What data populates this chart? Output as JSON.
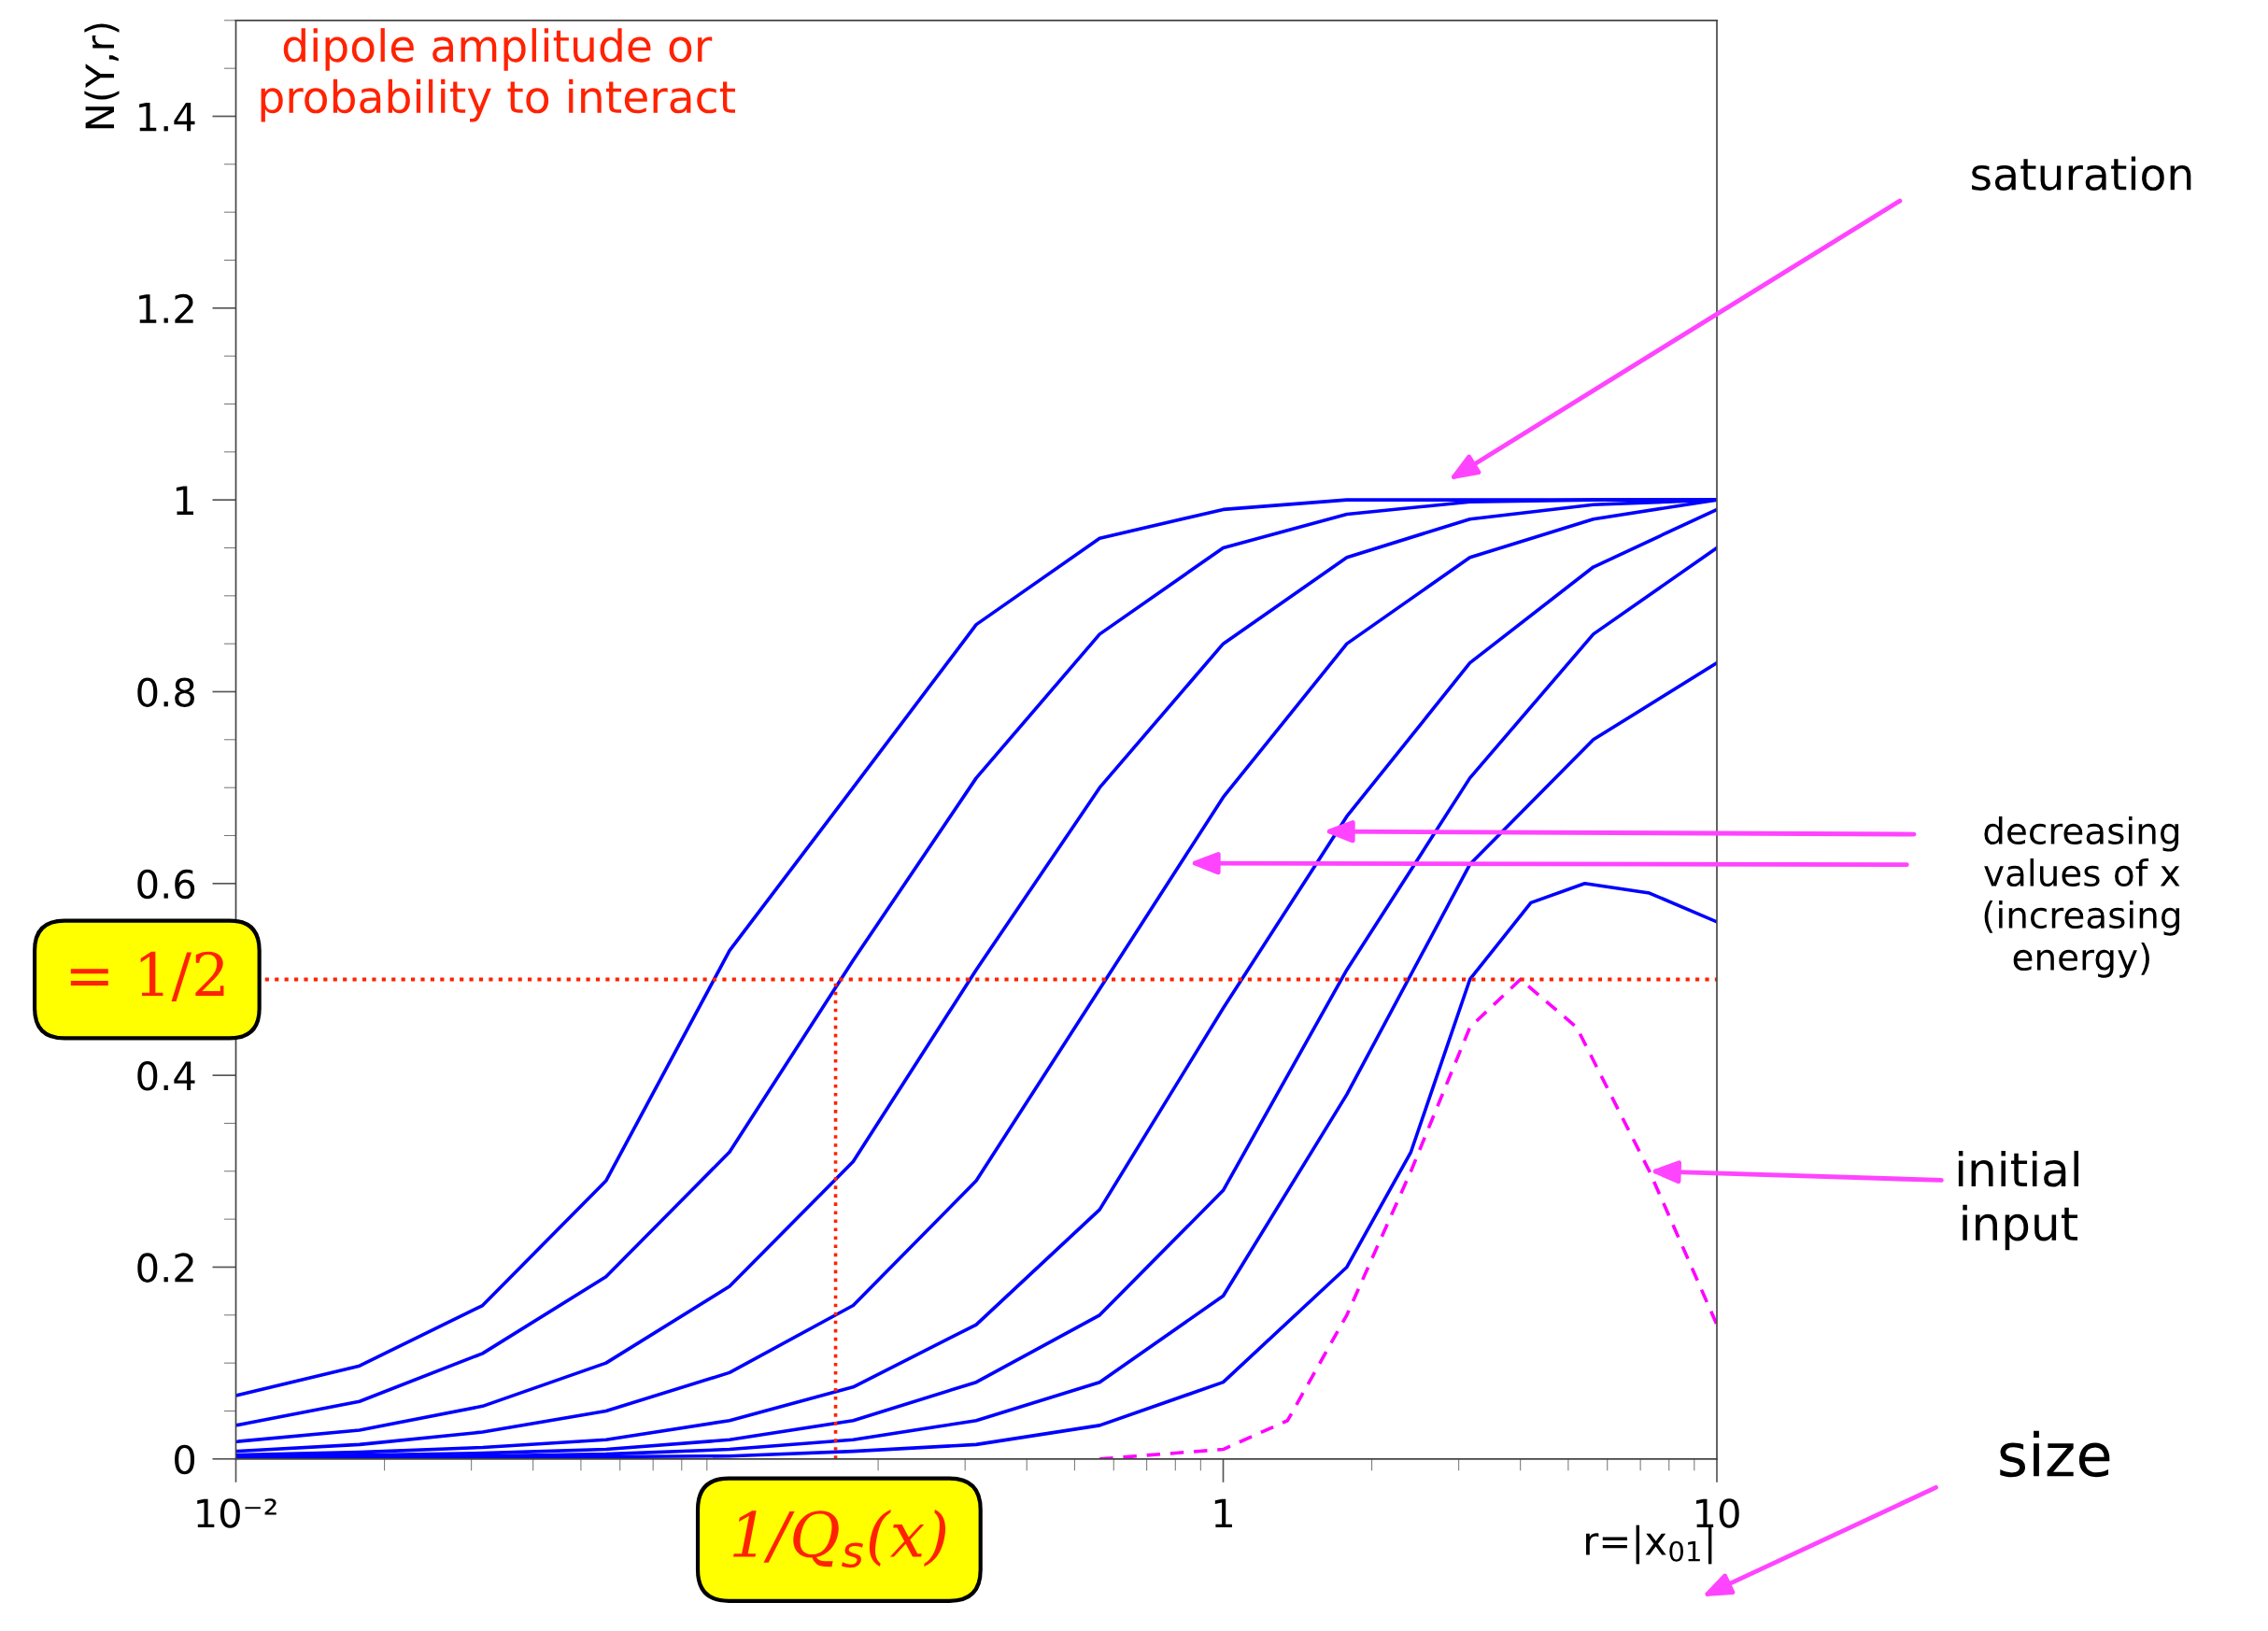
{
  "chart_data": {
    "type": "line",
    "xlabel": "r=|x$_{01}$|",
    "ylabel": "N(Y,r)",
    "log": "x",
    "xlim": [
      0.01,
      10
    ],
    "ylim": [
      0,
      1.5
    ],
    "xticks": [
      {
        "value": 0.01,
        "label": "10⁻²"
      },
      {
        "value": 1,
        "label": "1"
      },
      {
        "value": 10,
        "label": "10"
      }
    ],
    "yticks": [
      0,
      0.2,
      0.4,
      0.6,
      0.8,
      1,
      1.2,
      1.4
    ],
    "x": [
      0.01,
      0.0178,
      0.0316,
      0.0562,
      0.1,
      0.178,
      0.316,
      0.562,
      1,
      1.78,
      3.16,
      5.62,
      10
    ],
    "grid": false,
    "legend": false,
    "marker": "none",
    "series": [
      {
        "color": "#0000ff",
        "values": [
          0.066,
          0.097,
          0.16,
          0.29,
          0.53,
          0.7,
          0.87,
          0.96,
          0.99,
          1.0,
          1.0,
          1.0,
          1.0
        ]
      },
      {
        "color": "#0000ff",
        "values": [
          0.035,
          0.06,
          0.11,
          0.19,
          0.32,
          0.52,
          0.71,
          0.86,
          0.95,
          0.985,
          0.998,
          1.0,
          1.0
        ]
      },
      {
        "color": "#0000ff",
        "values": [
          0.018,
          0.03,
          0.055,
          0.1,
          0.18,
          0.31,
          0.51,
          0.7,
          0.85,
          0.94,
          0.98,
          0.995,
          1.0
        ]
      },
      {
        "color": "#0000ff",
        "values": [
          0.008,
          0.015,
          0.028,
          0.05,
          0.09,
          0.16,
          0.29,
          0.49,
          0.69,
          0.85,
          0.94,
          0.98,
          1.0
        ]
      },
      {
        "color": "#0000ff",
        "values": [
          0.004,
          0.007,
          0.012,
          0.02,
          0.04,
          0.075,
          0.14,
          0.26,
          0.47,
          0.67,
          0.83,
          0.93,
          0.99
        ]
      },
      {
        "color": "#0000ff",
        "values": [
          0.002,
          0.004,
          0.006,
          0.01,
          0.02,
          0.04,
          0.08,
          0.15,
          0.28,
          0.51,
          0.71,
          0.86,
          0.95
        ]
      },
      {
        "color": "#0000ff",
        "values": [
          0.001,
          0.002,
          0.003,
          0.005,
          0.01,
          0.02,
          0.04,
          0.08,
          0.17,
          0.38,
          0.62,
          0.75,
          0.83
        ]
      },
      {
        "color": "#0000ff",
        "x": [
          0.01,
          0.1,
          0.178,
          0.316,
          0.562,
          1,
          1.78,
          2.4,
          3.16,
          4.2,
          5.4,
          7.3,
          10
        ],
        "values": [
          0,
          0.003,
          0.008,
          0.015,
          0.035,
          0.08,
          0.2,
          0.32,
          0.5,
          0.58,
          0.6,
          0.59,
          0.56
        ]
      },
      {
        "color": "#ff00ff",
        "line_style": "dashed",
        "x": [
          0.562,
          1,
          1.35,
          1.78,
          2.4,
          3.16,
          4.0,
          5.2,
          7.3,
          10
        ],
        "values": [
          0,
          0.01,
          0.04,
          0.15,
          0.3,
          0.45,
          0.5,
          0.45,
          0.3,
          0.14
        ]
      },
      {
        "color": "#ff2200",
        "line_style": "dotted",
        "x": [
          0.164,
          0.164
        ],
        "values": [
          0,
          0.5
        ]
      }
    ],
    "ref_lines": [
      {
        "axis": "y",
        "value": 0.5,
        "label": "= 1/2",
        "color": "#ff2200",
        "line_style": "dotted"
      }
    ],
    "annotations": [
      "dipole amplitude or\nprobability to interact",
      "saturation",
      "decreasing\nvalues of x\n(increasing\nenergy)",
      {
        "text": "initial\ninput",
        "x": 7.3,
        "y": 0.3
      },
      "size",
      "1/Q$_{s}$(x)"
    ]
  }
}
